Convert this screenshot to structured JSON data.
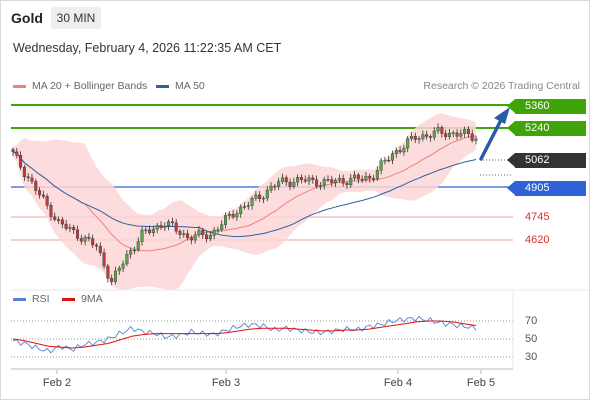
{
  "header": {
    "asset": "Gold",
    "timeframe": "30 MIN"
  },
  "datetime": "Wednesday, February 4, 2026 11:22:35 AM CET",
  "legend": {
    "ma20_label": "MA 20 + Bollinger Bands",
    "ma50_label": "MA 50",
    "credit": "Research © 2026 Trading Central"
  },
  "colors": {
    "resistance": "#3fa40a",
    "support_blue": "#2e62d6",
    "support_red": "#e05050",
    "current": "#333333",
    "ma20": "#f08080",
    "ma50": "#3060a0",
    "bollinger": "#fbd6d6",
    "arrow": "#2a5aa8",
    "rsi": "#5a7fd6",
    "rsi_ma": "#dd1111"
  },
  "levels": {
    "r2": "5360",
    "r1": "5240",
    "current": "5062",
    "s1": "4905",
    "s2": "4745",
    "s3": "4620"
  },
  "rsi_legend": {
    "rsi": "RSI",
    "ma": "9MA"
  },
  "rsi_axis": [
    "70",
    "50",
    "30"
  ],
  "x_axis": [
    "Feb 2",
    "Feb 3",
    "Feb 4",
    "Feb 5"
  ],
  "chart_data": [
    {
      "type": "candlestick",
      "title": "Gold 30 MIN",
      "x": [
        "Feb 2",
        "Feb 3",
        "Feb 4",
        "Feb 5"
      ],
      "close_approx": [
        4950,
        4890,
        4860,
        4820,
        4780,
        4700,
        4680,
        4640,
        4600,
        4560,
        4520,
        4600,
        4680,
        4720,
        4760,
        4740,
        4700,
        4660,
        4680,
        4710,
        4730,
        4770,
        4840,
        4880,
        4920,
        4930,
        4940,
        4945,
        4930,
        4925,
        4935,
        4960,
        4990,
        5010,
        5060,
        5090,
        5085,
        5095,
        5080,
        5062
      ],
      "series": [
        {
          "name": "MA 20 + Bollinger Bands"
        },
        {
          "name": "MA 50"
        }
      ],
      "levels": [
        5360,
        5240,
        5062,
        4905,
        4745,
        4620
      ],
      "ylim": [
        4450,
        5420
      ]
    },
    {
      "type": "line",
      "title": "RSI",
      "series": [
        {
          "name": "RSI",
          "values": [
            48,
            45,
            40,
            36,
            42,
            38,
            44,
            46,
            50,
            56,
            62,
            58,
            56,
            52,
            54,
            58,
            56,
            55,
            60,
            64,
            66,
            65,
            60,
            62,
            60,
            58,
            57,
            59,
            61,
            60,
            64,
            66,
            70,
            72,
            73,
            71,
            68,
            66,
            64,
            62
          ]
        },
        {
          "name": "9MA",
          "values": [
            50,
            48,
            45,
            42,
            41,
            40,
            41,
            43,
            45,
            49,
            53,
            55,
            56,
            56,
            56,
            56,
            56,
            56,
            57,
            59,
            61,
            62,
            62,
            62,
            61,
            60,
            59,
            59,
            60,
            60,
            61,
            63,
            65,
            67,
            69,
            70,
            70,
            69,
            67,
            65
          ]
        }
      ],
      "ylim": [
        20,
        85
      ],
      "yticks": [
        30,
        50,
        70
      ]
    }
  ]
}
